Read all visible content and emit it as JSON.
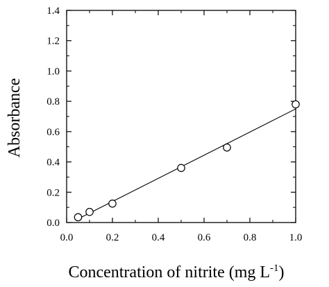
{
  "chart_data": {
    "type": "scatter",
    "title": "",
    "xlabel": "Concentration of nitrite (mg L",
    "xlabel_superscript": "-1",
    "xlabel_suffix": ")",
    "ylabel": "Absorbance",
    "xlim": [
      0.0,
      1.0
    ],
    "ylim": [
      0.0,
      1.4
    ],
    "x_ticks": [
      "0.0",
      "0.2",
      "0.4",
      "0.6",
      "0.8",
      "1.0"
    ],
    "y_ticks": [
      "0.0",
      "0.2",
      "0.4",
      "0.6",
      "0.8",
      "1.0",
      "1.2",
      "1.4"
    ],
    "grid": false,
    "series": [
      {
        "points": [
          {
            "x": 0.05,
            "y": 0.035
          },
          {
            "x": 0.1,
            "y": 0.07
          },
          {
            "x": 0.2,
            "y": 0.125
          },
          {
            "x": 0.5,
            "y": 0.36
          },
          {
            "x": 0.7,
            "y": 0.495
          },
          {
            "x": 1.0,
            "y": 0.78
          }
        ],
        "marker": "open-circle"
      }
    ],
    "fit_line": {
      "x": [
        0.05,
        1.0
      ],
      "y": [
        0.024,
        0.75
      ]
    }
  },
  "colors": {
    "ink": "#000000",
    "background": "#ffffff"
  }
}
